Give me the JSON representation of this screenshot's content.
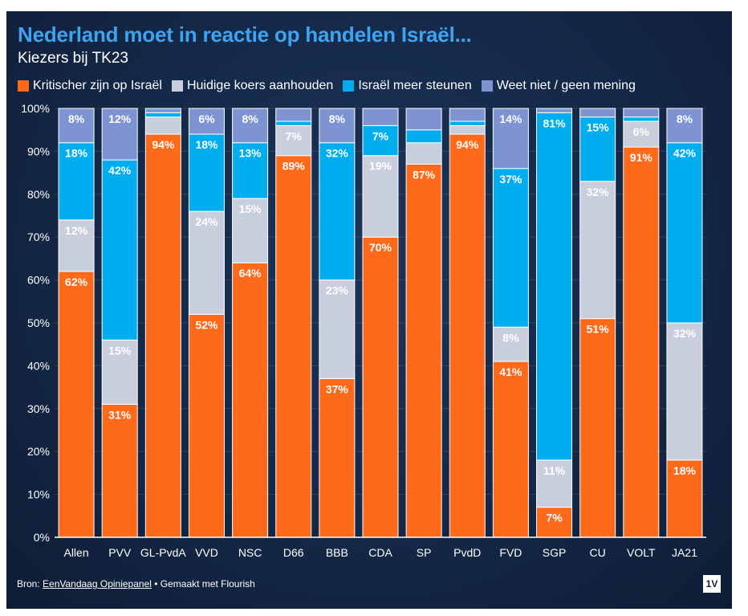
{
  "title": "Nederland moet in reactie op handelen Israël...",
  "subtitle": "Kiezers bij TK23",
  "footer": {
    "source_prefix": "Bron: ",
    "source_link": "EenVandaag Opiniepanel",
    "separator": " • ",
    "made_with": "Gemaakt met Flourish"
  },
  "brand_logo": "1V",
  "colors": {
    "kritischer": "#ff6a1a",
    "huidige": "#c9cedd",
    "steunen": "#00aeef",
    "weet_niet": "#7e94d2",
    "background": "#142847",
    "title": "#3ea3f0"
  },
  "chart_data": {
    "type": "bar",
    "stacked": true,
    "title": "Nederland moet in reactie op handelen Israël...",
    "subtitle": "Kiezers bij TK23",
    "ylim": [
      0,
      100
    ],
    "y_ticks": [
      "0%",
      "10%",
      "20%",
      "30%",
      "40%",
      "50%",
      "60%",
      "70%",
      "80%",
      "90%",
      "100%"
    ],
    "legend_position": "top",
    "categories": [
      "Allen",
      "PVV",
      "GL-PvdA",
      "VVD",
      "NSC",
      "D66",
      "BBB",
      "CDA",
      "SP",
      "PvdD",
      "FVD",
      "SGP",
      "CU",
      "VOLT",
      "JA21"
    ],
    "series": [
      {
        "name": "Kritischer zijn op Israël",
        "color": "#ff6a1a",
        "values": [
          62,
          31,
          94,
          52,
          64,
          89,
          37,
          70,
          87,
          94,
          41,
          7,
          51,
          91,
          18
        ]
      },
      {
        "name": "Huidige koers aanhouden",
        "color": "#c9cedd",
        "values": [
          12,
          15,
          4,
          24,
          15,
          7,
          23,
          19,
          5,
          2,
          8,
          11,
          32,
          6,
          32
        ]
      },
      {
        "name": "Israël meer steunen",
        "color": "#00aeef",
        "values": [
          18,
          42,
          1,
          18,
          13,
          1,
          32,
          7,
          3,
          1,
          37,
          81,
          15,
          1,
          42
        ]
      },
      {
        "name": "Weet niet / geen mening",
        "color": "#7e94d2",
        "values": [
          8,
          12,
          1,
          6,
          8,
          3,
          8,
          4,
          5,
          3,
          14,
          1,
          2,
          2,
          8
        ]
      }
    ],
    "data_labels": [
      [
        "62%",
        "31%",
        "94%",
        "52%",
        "64%",
        "89%",
        "37%",
        "70%",
        "87%",
        "94%",
        "41%",
        "7%",
        "51%",
        "91%",
        "18%"
      ],
      [
        "12%",
        "15%",
        "",
        "24%",
        "15%",
        "7%",
        "23%",
        "19%",
        "",
        "",
        "8%",
        "11%",
        "32%",
        "6%",
        "32%"
      ],
      [
        "18%",
        "42%",
        "",
        "18%",
        "13%",
        "",
        "32%",
        "7%",
        "",
        "",
        "37%",
        "81%",
        "15%",
        "",
        "42%"
      ],
      [
        "8%",
        "12%",
        "",
        "6%",
        "8%",
        "",
        "8%",
        "",
        "",
        "",
        "14%",
        "",
        "",
        "",
        "8%"
      ]
    ]
  }
}
